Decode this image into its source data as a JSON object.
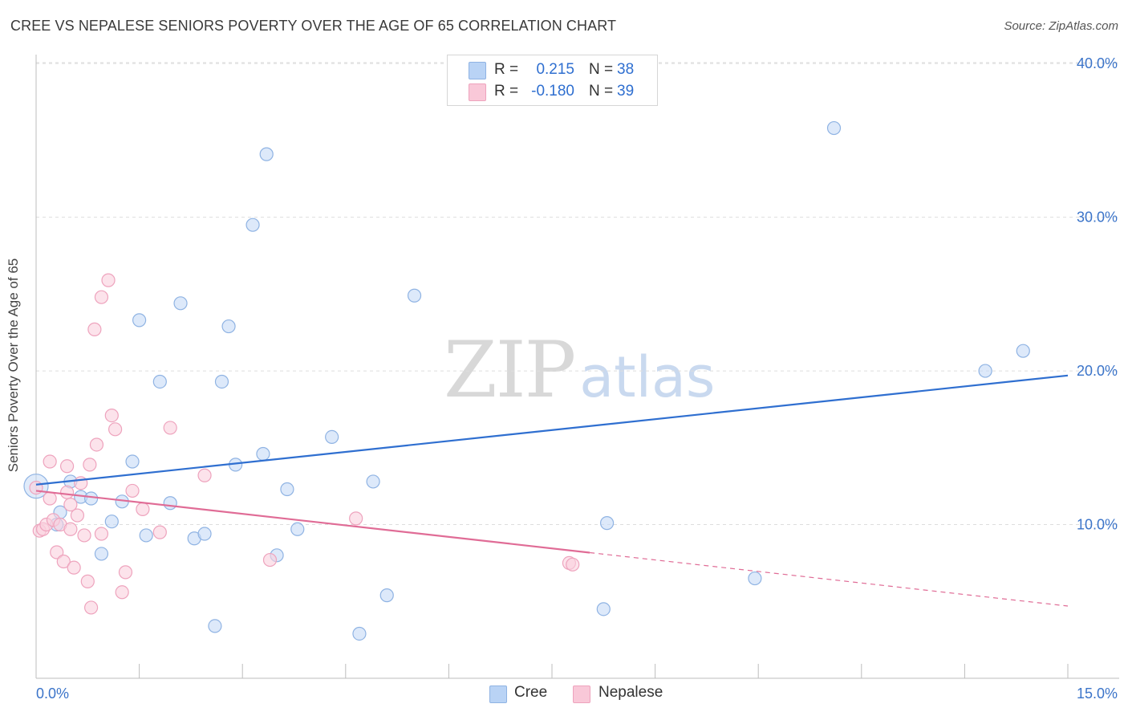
{
  "title": "CREE VS NEPALESE SENIORS POVERTY OVER THE AGE OF 65 CORRELATION CHART",
  "source": "Source: ZipAtlas.com",
  "watermark": {
    "zip": "ZIP",
    "atlas": "atlas"
  },
  "legend": {
    "rows": [
      {
        "r_label": "R =",
        "r_value": "0.215",
        "n_label": "N =",
        "n_value": "38",
        "color": "#b9d3f5",
        "border": "#8fb3e3"
      },
      {
        "r_label": "R =",
        "r_value": "-0.180",
        "n_label": "N =",
        "n_value": "39",
        "color": "#f9c8d8",
        "border": "#eea3bd"
      }
    ]
  },
  "bottom_legend": [
    {
      "label": "Cree",
      "color": "#b9d3f5",
      "border": "#8fb3e3"
    },
    {
      "label": "Nepalese",
      "color": "#f9c8d8",
      "border": "#eea3bd"
    }
  ],
  "chart_data": {
    "type": "scatter",
    "title": "CREE VS NEPALESE SENIORS POVERTY OVER THE AGE OF 65 CORRELATION CHART",
    "xlabel": "",
    "ylabel": "Seniors Poverty Over the Age of 65",
    "xlim": [
      0,
      15
    ],
    "ylim": [
      0,
      41
    ],
    "x_tick_labels": [
      {
        "value": 0,
        "label": "0.0%"
      },
      {
        "value": 15,
        "label": "15.0%"
      }
    ],
    "y_tick_labels": [
      {
        "value": 10,
        "label": "10.0%"
      },
      {
        "value": 20,
        "label": "20.0%"
      },
      {
        "value": 30,
        "label": "30.0%"
      },
      {
        "value": 40,
        "label": "40.0%"
      }
    ],
    "gridlines": [
      10,
      20,
      30,
      40
    ],
    "series": [
      {
        "name": "Cree",
        "color": "#8fb3e3",
        "fill": "#c6dbf6",
        "line_color": "#2f6fd0",
        "trend": {
          "x0": 0,
          "y0": 12.6,
          "x1": 15,
          "y1": 19.7,
          "solid_to": 15
        },
        "points": [
          [
            0.0,
            12.5
          ],
          [
            0.3,
            10.0
          ],
          [
            0.35,
            10.8
          ],
          [
            0.5,
            12.8
          ],
          [
            0.65,
            11.8
          ],
          [
            0.8,
            11.7
          ],
          [
            0.95,
            8.1
          ],
          [
            1.1,
            10.2
          ],
          [
            1.25,
            11.5
          ],
          [
            1.4,
            14.1
          ],
          [
            1.5,
            23.3
          ],
          [
            1.6,
            9.3
          ],
          [
            1.8,
            19.3
          ],
          [
            1.95,
            11.4
          ],
          [
            2.1,
            24.4
          ],
          [
            2.3,
            9.1
          ],
          [
            2.45,
            9.4
          ],
          [
            2.6,
            3.4
          ],
          [
            2.7,
            19.3
          ],
          [
            2.8,
            22.9
          ],
          [
            2.9,
            13.9
          ],
          [
            3.15,
            29.5
          ],
          [
            3.3,
            14.6
          ],
          [
            3.35,
            34.1
          ],
          [
            3.5,
            8.0
          ],
          [
            3.65,
            12.3
          ],
          [
            3.8,
            9.7
          ],
          [
            4.3,
            15.7
          ],
          [
            4.7,
            2.9
          ],
          [
            4.9,
            12.8
          ],
          [
            5.1,
            5.4
          ],
          [
            5.5,
            24.9
          ],
          [
            8.25,
            4.5
          ],
          [
            8.3,
            10.1
          ],
          [
            10.45,
            6.5
          ],
          [
            11.6,
            35.8
          ],
          [
            13.8,
            20.0
          ],
          [
            14.35,
            21.3
          ]
        ]
      },
      {
        "name": "Nepalese",
        "color": "#eea3bd",
        "fill": "#fad0de",
        "line_color": "#e06c96",
        "trend": {
          "x0": 0,
          "y0": 12.2,
          "x1": 15,
          "y1": 4.7,
          "solid_to": 8.05
        },
        "points": [
          [
            0.05,
            9.6
          ],
          [
            0.1,
            9.7
          ],
          [
            0.15,
            10.0
          ],
          [
            0.2,
            11.7
          ],
          [
            0.2,
            14.1
          ],
          [
            0.25,
            10.3
          ],
          [
            0.3,
            8.2
          ],
          [
            0.35,
            10.0
          ],
          [
            0.4,
            7.6
          ],
          [
            0.45,
            13.8
          ],
          [
            0.45,
            12.1
          ],
          [
            0.5,
            11.3
          ],
          [
            0.5,
            9.7
          ],
          [
            0.55,
            7.2
          ],
          [
            0.6,
            10.6
          ],
          [
            0.65,
            12.7
          ],
          [
            0.7,
            9.3
          ],
          [
            0.75,
            6.3
          ],
          [
            0.78,
            13.9
          ],
          [
            0.8,
            4.6
          ],
          [
            0.85,
            22.7
          ],
          [
            0.88,
            15.2
          ],
          [
            0.95,
            24.8
          ],
          [
            0.95,
            9.4
          ],
          [
            1.05,
            25.9
          ],
          [
            1.1,
            17.1
          ],
          [
            1.15,
            16.2
          ],
          [
            1.25,
            5.6
          ],
          [
            1.3,
            6.9
          ],
          [
            1.4,
            12.2
          ],
          [
            1.55,
            11.0
          ],
          [
            1.8,
            9.5
          ],
          [
            1.95,
            16.3
          ],
          [
            2.45,
            13.2
          ],
          [
            3.4,
            7.7
          ],
          [
            4.65,
            10.4
          ],
          [
            7.75,
            7.5
          ],
          [
            7.8,
            7.4
          ],
          [
            0.0,
            12.4
          ]
        ]
      }
    ]
  }
}
